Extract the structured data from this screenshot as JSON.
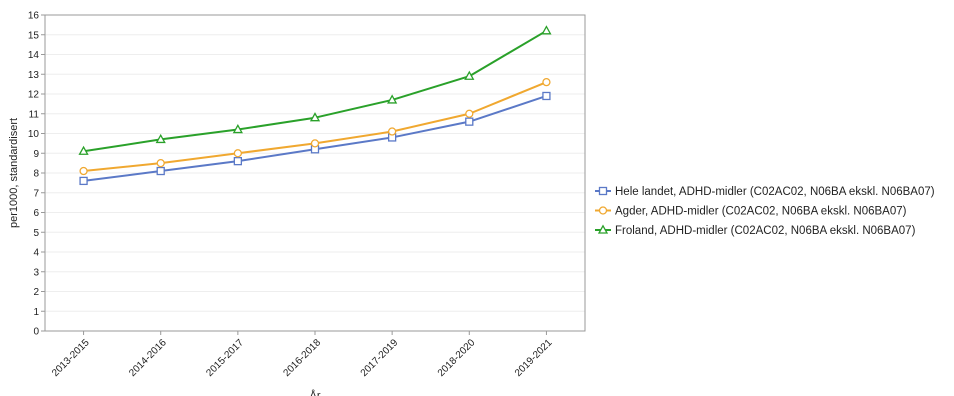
{
  "chart_data": {
    "type": "line",
    "title": "",
    "xlabel": "År",
    "ylabel": "per1000, standardisert",
    "ylim": [
      0,
      16
    ],
    "yticks": [
      0,
      1,
      2,
      3,
      4,
      5,
      6,
      7,
      8,
      9,
      10,
      11,
      12,
      13,
      14,
      15,
      16
    ],
    "grid": true,
    "legend_position": "right",
    "categories": [
      "2013-2015",
      "2014-2016",
      "2015-2017",
      "2016-2018",
      "2017-2019",
      "2018-2020",
      "2019-2021"
    ],
    "series": [
      {
        "name": "Hele landet, ADHD-midler (C02AC02, N06BA ekskl. N06BA07)",
        "color": "#5b79c7",
        "marker": "square",
        "values": [
          7.6,
          8.1,
          8.6,
          9.2,
          9.8,
          10.6,
          11.9
        ]
      },
      {
        "name": "Agder, ADHD-midler (C02AC02, N06BA ekskl. N06BA07)",
        "color": "#f0a830",
        "marker": "circle",
        "values": [
          8.1,
          8.5,
          9.0,
          9.5,
          10.1,
          11.0,
          12.6
        ]
      },
      {
        "name": "Froland, ADHD-midler (C02AC02, N06BA ekskl. N06BA07)",
        "color": "#2aa12a",
        "marker": "triangle",
        "values": [
          9.1,
          9.7,
          10.2,
          10.8,
          11.7,
          12.9,
          15.2
        ]
      }
    ]
  }
}
